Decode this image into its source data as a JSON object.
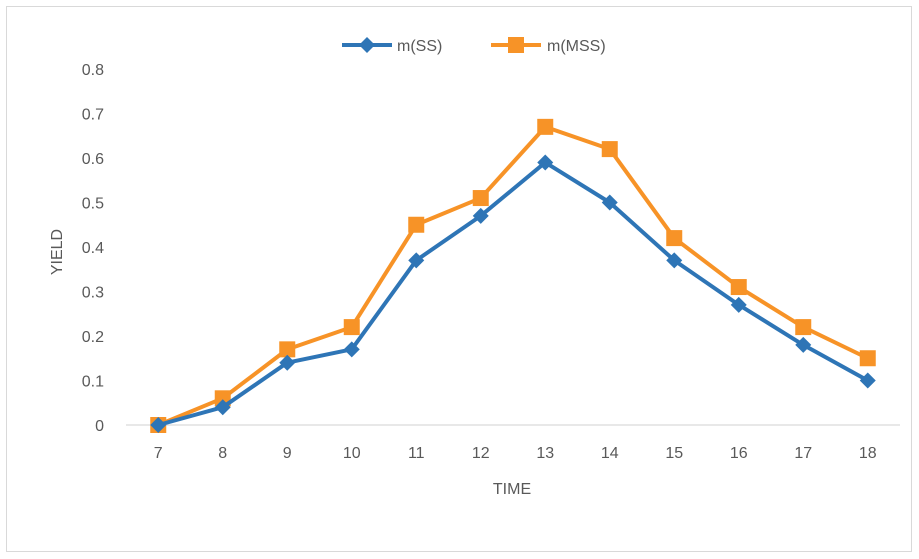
{
  "chart_data": {
    "type": "line",
    "title": "",
    "xlabel": "TIME",
    "ylabel": "YIELD",
    "categories": [
      "7",
      "8",
      "9",
      "10",
      "11",
      "12",
      "13",
      "14",
      "15",
      "16",
      "17",
      "18"
    ],
    "ylim": [
      0,
      0.8
    ],
    "yticks": [
      "0",
      "0.1",
      "0.2",
      "0.3",
      "0.4",
      "0.5",
      "0.6",
      "0.7",
      "0.8"
    ],
    "grid": false,
    "legend_position": "top",
    "series": [
      {
        "name": "m(SS)",
        "color": "#2e75b6",
        "marker": "diamond",
        "values": [
          0,
          0.04,
          0.14,
          0.17,
          0.37,
          0.47,
          0.59,
          0.5,
          0.37,
          0.27,
          0.18,
          0.1
        ]
      },
      {
        "name": "m(MSS)",
        "color": "#f79327",
        "marker": "square",
        "values": [
          0,
          0.06,
          0.17,
          0.22,
          0.45,
          0.51,
          0.67,
          0.62,
          0.42,
          0.31,
          0.22,
          0.15
        ]
      }
    ]
  }
}
